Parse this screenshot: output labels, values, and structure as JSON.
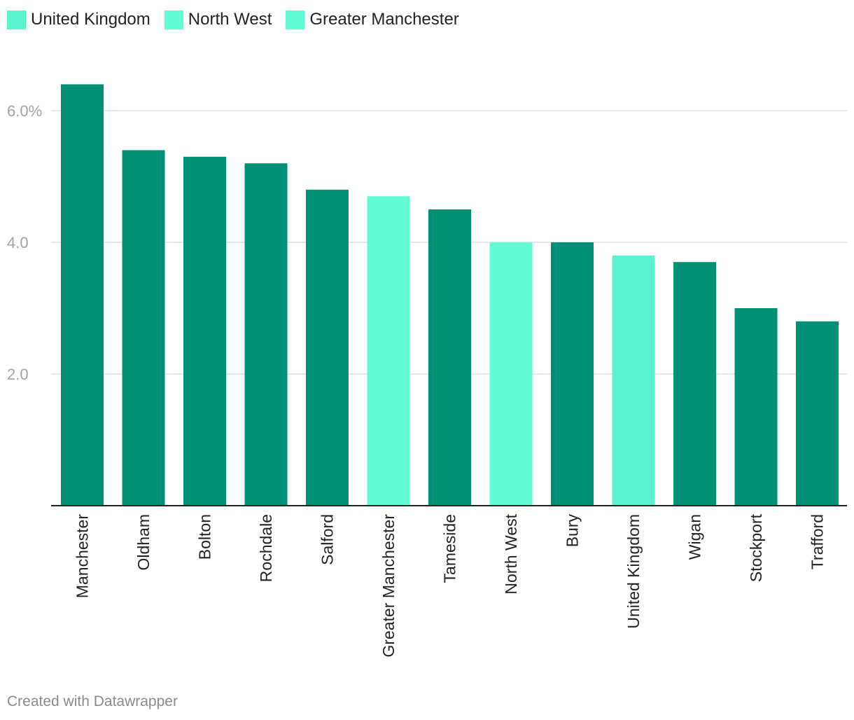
{
  "legend": [
    {
      "label": "United Kingdom",
      "color": "#59f3cf"
    },
    {
      "label": "North West",
      "color": "#62fcd6"
    },
    {
      "label": "Greater Manchester",
      "color": "#62fcd6"
    }
  ],
  "footer": {
    "credit": "Created with Datawrapper"
  },
  "colors": {
    "bar_default": "#009175",
    "axis": "#222222",
    "grid": "#e0e0e0",
    "tick_label": "#a3a3a3",
    "category_label": "#222222"
  },
  "chart_data": {
    "type": "bar",
    "title": "",
    "xlabel": "",
    "ylabel": "",
    "ylim": [
      0,
      6.6
    ],
    "yticks": [
      {
        "value": 2,
        "label": "2.0"
      },
      {
        "value": 4,
        "label": "4.0"
      },
      {
        "value": 6,
        "label": "6.0%"
      }
    ],
    "grid": true,
    "legend_position": "top-left",
    "categories": [
      "Manchester",
      "Oldham",
      "Bolton",
      "Rochdale",
      "Salford",
      "Greater Manchester",
      "Tameside",
      "North West",
      "Bury",
      "United Kingdom",
      "Wigan",
      "Stockport",
      "Trafford"
    ],
    "values": [
      6.4,
      5.4,
      5.3,
      5.2,
      4.8,
      4.7,
      4.5,
      4.0,
      4.0,
      3.8,
      3.7,
      3.0,
      2.8
    ],
    "bar_colors": [
      "#009175",
      "#009175",
      "#009175",
      "#009175",
      "#009175",
      "#62fcd6",
      "#009175",
      "#62fcd6",
      "#009175",
      "#59f3cf",
      "#009175",
      "#009175",
      "#009175"
    ]
  }
}
